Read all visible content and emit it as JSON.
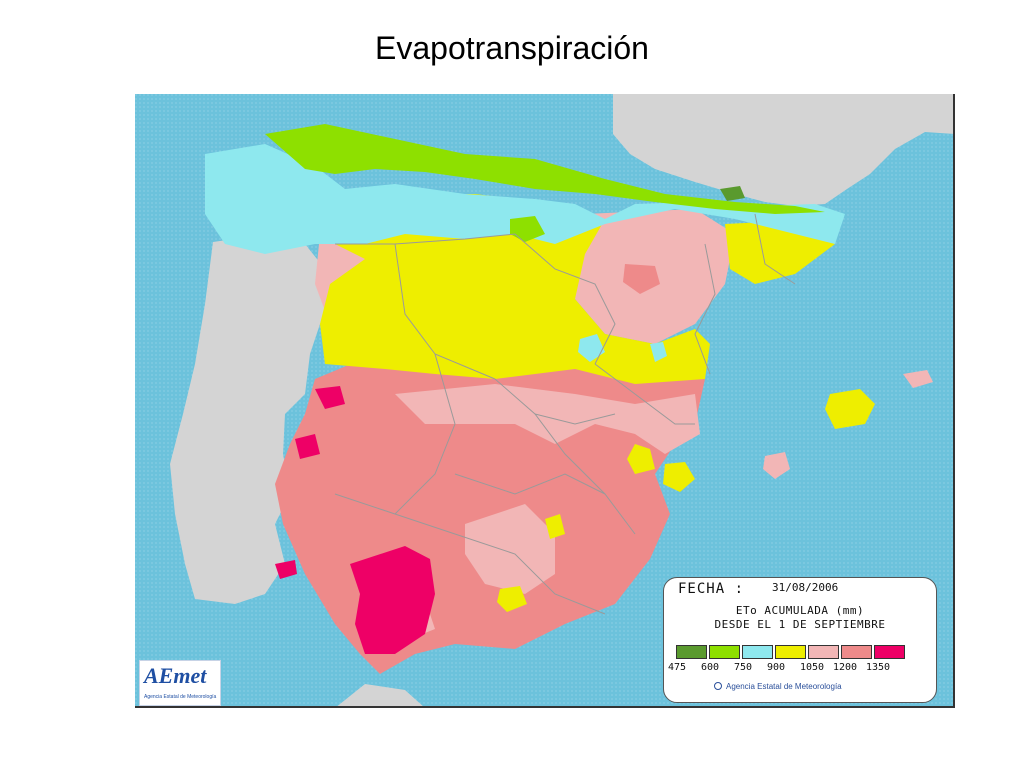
{
  "title": "Evapotranspiración",
  "legend": {
    "fecha_label": "FECHA :",
    "date": "31/08/2006",
    "line1": "ETo ACUMULADA (mm)",
    "line2": "DESDE EL 1 DE SEPTIEMBRE",
    "scale": [
      {
        "label": "475",
        "color": "#5a9a2e"
      },
      {
        "label": "600",
        "color": "#8ee000"
      },
      {
        "label": "750",
        "color": "#8ee8ee"
      },
      {
        "label": "900",
        "color": "#eeee00"
      },
      {
        "label": "1050",
        "color": "#f2b6b6"
      },
      {
        "label": "1200",
        "color": "#ee8a8a"
      },
      {
        "label": "1350",
        "color": "#ee0066"
      }
    ],
    "agency": "Agencia Estatal de Meteorología"
  },
  "logo": {
    "text": "AEmet",
    "subtext": "Agencia Estatal de Meteorología"
  },
  "colors": {
    "sea": "#6cc2dc",
    "land_outside": "#d4d4d4",
    "border_lines": "#9a9a9a"
  }
}
